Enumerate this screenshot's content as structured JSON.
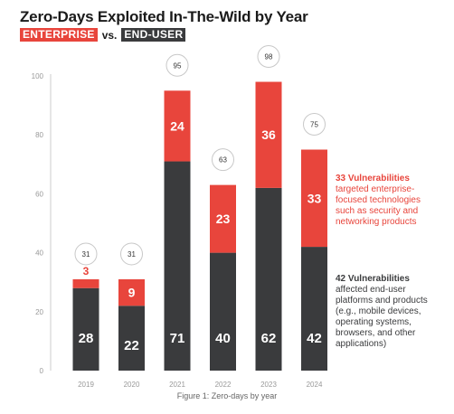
{
  "header": {
    "title": "Zero-Days Exploited In-The-Wild by Year",
    "subtitle_enterprise": "ENTERPRISE",
    "subtitle_vs": "vs.",
    "subtitle_enduser": "END-USER"
  },
  "annotations": {
    "enterprise_bold": "33 Vulnerabilities",
    "enterprise_lines": [
      "targeted enterprise-",
      "focused technologies",
      "such as security and",
      "networking products"
    ],
    "enduser_bold": "42 Vulnerabilities",
    "enduser_lines": [
      "affected end-user",
      "platforms and products",
      "(e.g., mobile devices,",
      "operating systems,",
      "browsers, and other",
      "applications)"
    ]
  },
  "caption": "Figure 1: Zero-days by year",
  "colors": {
    "enterprise": "#e8453c",
    "enduser": "#3a3b3d",
    "axis_text": "#999999",
    "bubble_border": "#c8c8c8"
  },
  "chart_data": {
    "type": "bar",
    "stacked": true,
    "categories": [
      "2019",
      "2020",
      "2021",
      "2022",
      "2023",
      "2024"
    ],
    "series": [
      {
        "name": "END-USER",
        "values": [
          28,
          22,
          71,
          40,
          62,
          42
        ]
      },
      {
        "name": "ENTERPRISE",
        "values": [
          3,
          9,
          24,
          23,
          36,
          33
        ]
      }
    ],
    "totals": [
      31,
      31,
      95,
      63,
      98,
      75
    ],
    "ylim": [
      0,
      100
    ],
    "yticks": [
      0,
      20,
      40,
      60,
      80,
      100
    ],
    "grid": false
  }
}
